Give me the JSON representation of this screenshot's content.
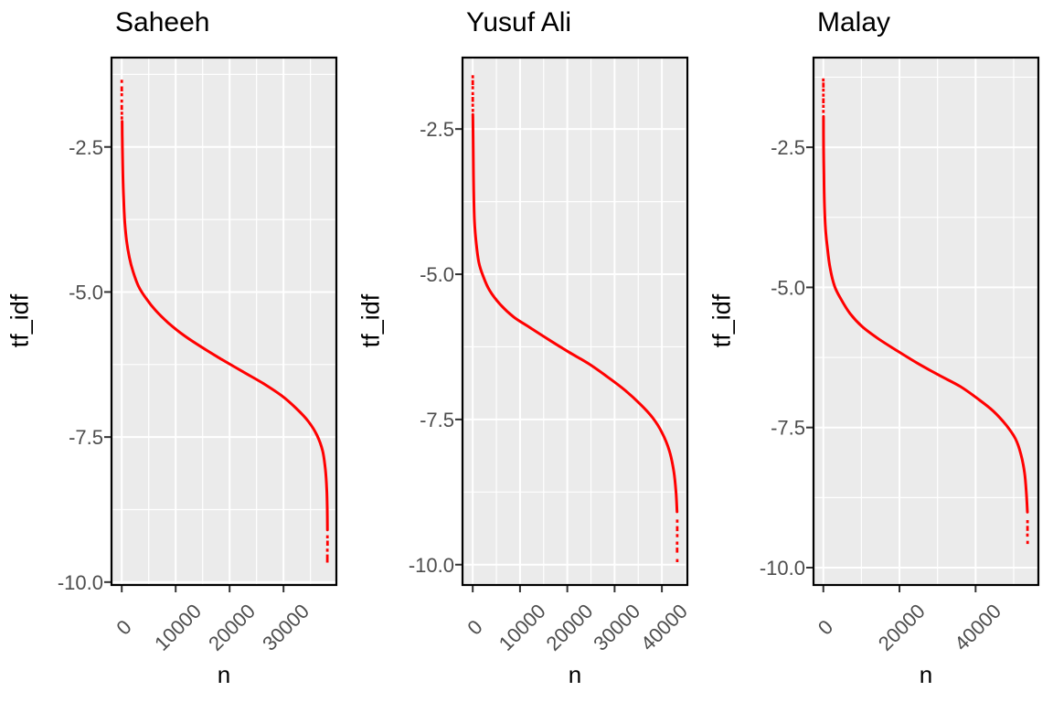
{
  "figure": {
    "colors": {
      "panel_background": "#EBEBEB",
      "grid": "#FFFFFF",
      "panel_border": "#000000",
      "tick_mark": "#333333",
      "tick_text": "#4D4D4D",
      "title_text": "#000000"
    }
  },
  "chart_data": [
    {
      "type": "scatter",
      "title": "Saheeh",
      "xlabel": "n",
      "ylabel": "tf_idf",
      "point_color": "#FF0000",
      "grid": true,
      "legend": false,
      "xlim": [
        -1900,
        39800
      ],
      "ylim": [
        -10.05,
        -0.96
      ],
      "x_ticks": {
        "values": [
          0,
          10000,
          20000,
          30000
        ],
        "labels": [
          "0",
          "10000",
          "20000",
          "30000"
        ]
      },
      "x_minor_ticks": [
        5000,
        15000,
        25000,
        35000
      ],
      "y_ticks": {
        "values": [
          -2.5,
          -5.0,
          -7.5,
          -10.0
        ],
        "labels": [
          "-2.5",
          "-5.0",
          "-7.5",
          "-10.0"
        ]
      },
      "y_minor_ticks": [
        -1.25,
        -3.75,
        -6.25,
        -8.75
      ],
      "head_points": [
        [
          1,
          -1.37
        ],
        [
          2,
          -1.5
        ],
        [
          3,
          -1.6
        ],
        [
          4,
          -1.71
        ],
        [
          6,
          -1.82
        ],
        [
          10,
          -1.92
        ],
        [
          20,
          -2.0
        ]
      ],
      "curve": [
        [
          60,
          -2.06
        ],
        [
          90,
          -2.28
        ],
        [
          120,
          -2.5
        ],
        [
          200,
          -2.95
        ],
        [
          350,
          -3.4
        ],
        [
          560,
          -3.8
        ],
        [
          900,
          -4.12
        ],
        [
          1400,
          -4.4
        ],
        [
          2100,
          -4.65
        ],
        [
          3100,
          -4.9
        ],
        [
          4500,
          -5.11
        ],
        [
          6300,
          -5.32
        ],
        [
          8600,
          -5.53
        ],
        [
          11400,
          -5.74
        ],
        [
          14800,
          -5.95
        ],
        [
          18500,
          -6.16
        ],
        [
          22400,
          -6.37
        ],
        [
          26300,
          -6.58
        ],
        [
          29700,
          -6.79
        ],
        [
          32400,
          -7.01
        ],
        [
          34600,
          -7.23
        ],
        [
          36200,
          -7.47
        ],
        [
          37250,
          -7.74
        ],
        [
          37760,
          -8.06
        ],
        [
          38010,
          -8.39
        ],
        [
          38100,
          -8.72
        ],
        [
          38140,
          -9.1
        ]
      ],
      "tail_points": [
        [
          38145,
          -9.22
        ],
        [
          38150,
          -9.33
        ],
        [
          38130,
          -9.45
        ],
        [
          38125,
          -9.55
        ],
        [
          38120,
          -9.62
        ]
      ]
    },
    {
      "type": "scatter",
      "title": "Yusuf Ali",
      "xlabel": "n",
      "ylabel": "tf_idf",
      "point_color": "#FF0000",
      "grid": true,
      "legend": false,
      "xlim": [
        -2160,
        45390
      ],
      "ylim": [
        -10.35,
        -1.27
      ],
      "x_ticks": {
        "values": [
          0,
          10000,
          20000,
          30000,
          40000
        ],
        "labels": [
          "0",
          "10000",
          "20000",
          "30000",
          "40000"
        ]
      },
      "x_minor_ticks": [
        5000,
        15000,
        25000,
        35000,
        45000
      ],
      "y_ticks": {
        "values": [
          -2.5,
          -5.0,
          -7.5,
          -10.0
        ],
        "labels": [
          "-2.5",
          "-5.0",
          "-7.5",
          "-10.0"
        ]
      },
      "y_minor_ticks": [
        -3.75,
        -6.25,
        -8.75
      ],
      "head_points": [
        [
          1,
          -1.6
        ],
        [
          2,
          -1.7
        ],
        [
          3,
          -1.79
        ],
        [
          5,
          -1.89
        ],
        [
          8,
          -1.99
        ],
        [
          12,
          -2.09
        ],
        [
          20,
          -2.18
        ]
      ],
      "curve": [
        [
          30,
          -2.25
        ],
        [
          60,
          -2.5
        ],
        [
          120,
          -3.0
        ],
        [
          200,
          -3.54
        ],
        [
          350,
          -4.06
        ],
        [
          680,
          -4.42
        ],
        [
          1300,
          -4.8
        ],
        [
          2280,
          -5.05
        ],
        [
          3580,
          -5.28
        ],
        [
          5820,
          -5.52
        ],
        [
          8720,
          -5.74
        ],
        [
          11950,
          -5.91
        ],
        [
          16140,
          -6.13
        ],
        [
          20320,
          -6.34
        ],
        [
          24510,
          -6.54
        ],
        [
          28380,
          -6.76
        ],
        [
          32240,
          -7.0
        ],
        [
          35470,
          -7.24
        ],
        [
          38040,
          -7.47
        ],
        [
          39980,
          -7.72
        ],
        [
          41580,
          -8.04
        ],
        [
          42550,
          -8.41
        ],
        [
          43010,
          -8.78
        ],
        [
          43200,
          -9.09
        ]
      ],
      "tail_points": [
        [
          43240,
          -9.25
        ],
        [
          43245,
          -9.38
        ],
        [
          43235,
          -9.5
        ],
        [
          43220,
          -9.63
        ],
        [
          43225,
          -9.75
        ],
        [
          43240,
          -9.93
        ]
      ]
    },
    {
      "type": "scatter",
      "title": "Malay",
      "xlabel": "n",
      "ylabel": "tf_idf",
      "point_color": "#FF0000",
      "grid": true,
      "legend": false,
      "xlim": [
        -2580,
        56490
      ],
      "ylim": [
        -10.31,
        -0.9
      ],
      "x_ticks": {
        "values": [
          0,
          20000,
          40000
        ],
        "labels": [
          "0",
          "20000",
          "40000"
        ]
      },
      "x_minor_ticks": [
        10000,
        30000,
        50000
      ],
      "y_ticks": {
        "values": [
          -2.5,
          -5.0,
          -7.5,
          -10.0
        ],
        "labels": [
          "-2.5",
          "-5.0",
          "-7.5",
          "-10.0"
        ]
      },
      "y_minor_ticks": [
        -1.25,
        -3.75,
        -6.25,
        -8.75
      ],
      "head_points": [
        [
          1,
          -1.3
        ],
        [
          2,
          -1.39
        ],
        [
          3,
          -1.48
        ],
        [
          4,
          -1.57
        ],
        [
          6,
          -1.67
        ],
        [
          9,
          -1.77
        ],
        [
          14,
          -1.86
        ]
      ],
      "curve": [
        [
          30,
          -1.95
        ],
        [
          60,
          -2.5
        ],
        [
          150,
          -3.0
        ],
        [
          300,
          -3.55
        ],
        [
          560,
          -3.95
        ],
        [
          1040,
          -4.28
        ],
        [
          1760,
          -4.65
        ],
        [
          2970,
          -4.98
        ],
        [
          4650,
          -5.21
        ],
        [
          7060,
          -5.47
        ],
        [
          10200,
          -5.7
        ],
        [
          14300,
          -5.91
        ],
        [
          19120,
          -6.12
        ],
        [
          24660,
          -6.35
        ],
        [
          30210,
          -6.56
        ],
        [
          36000,
          -6.77
        ],
        [
          40820,
          -7.0
        ],
        [
          44670,
          -7.21
        ],
        [
          48050,
          -7.46
        ],
        [
          50460,
          -7.7
        ],
        [
          51910,
          -7.98
        ],
        [
          52870,
          -8.31
        ],
        [
          53350,
          -8.68
        ],
        [
          53600,
          -9.01
        ]
      ],
      "tail_points": [
        [
          53640,
          -9.18
        ],
        [
          53630,
          -9.3
        ],
        [
          53620,
          -9.42
        ],
        [
          53645,
          -9.55
        ]
      ]
    }
  ]
}
